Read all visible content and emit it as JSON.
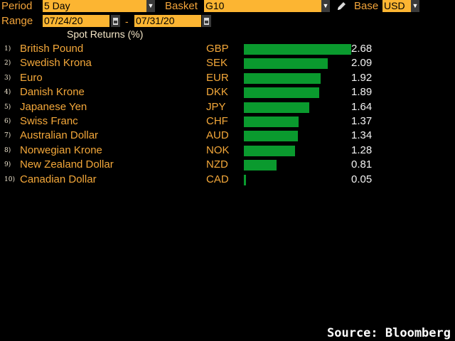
{
  "toolbar": {
    "period_label": "Period",
    "period_value": "5 Day",
    "basket_label": "Basket",
    "basket_value": "G10",
    "base_label": "Base",
    "base_value": "USD",
    "range_label": "Range",
    "range_start": "07/24/20",
    "range_separator": "-",
    "range_end": "07/31/20"
  },
  "chart_title": "Spot Returns (%)",
  "colors": {
    "background": "#000000",
    "label_orange": "#f4a83a",
    "field_amber": "#fcb532",
    "bar_green": "#0a9a2e",
    "value_white": "#f2f2f2"
  },
  "icons": {
    "dropdown": "chevron-down-icon",
    "calendar": "calendar-icon",
    "edit": "pencil-icon"
  },
  "rows": [
    {
      "rank": "1)",
      "name": "British Pound",
      "code": "GBP",
      "value": "2.68"
    },
    {
      "rank": "2)",
      "name": "Swedish Krona",
      "code": "SEK",
      "value": "2.09"
    },
    {
      "rank": "3)",
      "name": "Euro",
      "code": "EUR",
      "value": "1.92"
    },
    {
      "rank": "4)",
      "name": "Danish Krone",
      "code": "DKK",
      "value": "1.89"
    },
    {
      "rank": "5)",
      "name": "Japanese Yen",
      "code": "JPY",
      "value": "1.64"
    },
    {
      "rank": "6)",
      "name": "Swiss Franc",
      "code": "CHF",
      "value": "1.37"
    },
    {
      "rank": "7)",
      "name": "Australian Dollar",
      "code": "AUD",
      "value": "1.34"
    },
    {
      "rank": "8)",
      "name": "Norwegian Krone",
      "code": "NOK",
      "value": "1.28"
    },
    {
      "rank": "9)",
      "name": "New Zealand Dollar",
      "code": "NZD",
      "value": "0.81"
    },
    {
      "rank": "10)",
      "name": "Canadian Dollar",
      "code": "CAD",
      "value": "0.05"
    }
  ],
  "chart_data": {
    "type": "bar",
    "title": "Spot Returns (%)",
    "categories": [
      "GBP",
      "SEK",
      "EUR",
      "DKK",
      "JPY",
      "CHF",
      "AUD",
      "NOK",
      "NZD",
      "CAD"
    ],
    "values": [
      2.68,
      2.09,
      1.92,
      1.89,
      1.64,
      1.37,
      1.34,
      1.28,
      0.81,
      0.05
    ],
    "xlim": [
      0,
      2.68
    ],
    "orientation": "horizontal",
    "grid": false
  },
  "footer": {
    "source": "Source: Bloomberg"
  }
}
